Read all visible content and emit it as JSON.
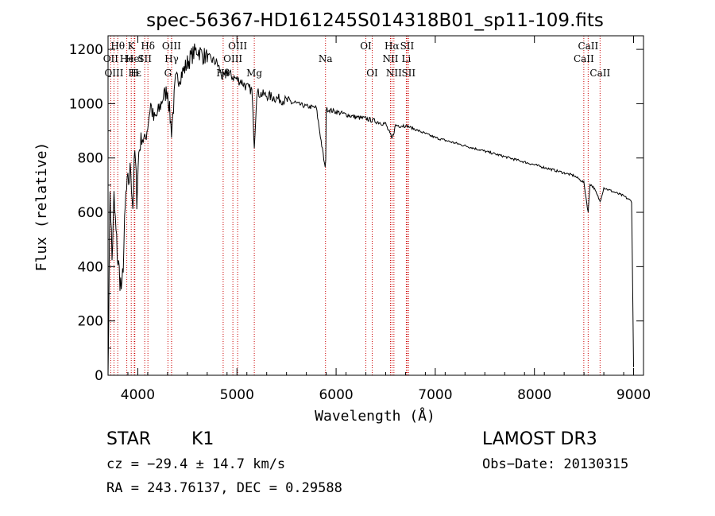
{
  "chart_data": {
    "type": "line",
    "title": "spec-56367-HD161245S014318B01_sp11-109.fits",
    "xlabel": "Wavelength (Å)",
    "ylabel": "Flux (relative)",
    "xlim": [
      3700,
      9100
    ],
    "ylim": [
      0,
      1250
    ],
    "x_ticks": [
      4000,
      5000,
      6000,
      7000,
      8000,
      9000
    ],
    "y_ticks": [
      0,
      200,
      400,
      600,
      800,
      1000,
      1200
    ],
    "grid": false,
    "series": [
      {
        "name": "spectrum",
        "x": [
          3700,
          3720,
          3740,
          3760,
          3780,
          3800,
          3820,
          3840,
          3860,
          3880,
          3900,
          3930,
          3950,
          3970,
          3990,
          4010,
          4040,
          4070,
          4100,
          4130,
          4160,
          4200,
          4250,
          4300,
          4340,
          4380,
          4420,
          4460,
          4500,
          4550,
          4600,
          4650,
          4700,
          4750,
          4800,
          4860,
          4900,
          4950,
          5000,
          5050,
          5100,
          5150,
          5175,
          5200,
          5300,
          5400,
          5500,
          5600,
          5700,
          5800,
          5890,
          5895,
          5900,
          5950,
          6000,
          6100,
          6200,
          6300,
          6400,
          6500,
          6563,
          6600,
          6700,
          6800,
          6900,
          7000,
          7100,
          7200,
          7300,
          7400,
          7500,
          7600,
          7700,
          7800,
          7900,
          8000,
          8100,
          8200,
          8300,
          8400,
          8498,
          8542,
          8560,
          8600,
          8662,
          8700,
          8800,
          8900,
          8980,
          9000
        ],
        "y": [
          0,
          700,
          420,
          650,
          520,
          420,
          360,
          300,
          480,
          660,
          700,
          760,
          620,
          820,
          660,
          820,
          880,
          860,
          920,
          1000,
          940,
          960,
          1020,
          1050,
          900,
          1080,
          1100,
          1120,
          1150,
          1180,
          1200,
          1180,
          1170,
          1160,
          1150,
          1090,
          1120,
          1100,
          1090,
          1080,
          1060,
          1050,
          850,
          1040,
          1030,
          1020,
          1010,
          1000,
          990,
          985,
          760,
          800,
          980,
          975,
          970,
          960,
          950,
          945,
          935,
          925,
          870,
          920,
          920,
          905,
          890,
          875,
          865,
          855,
          845,
          835,
          825,
          815,
          805,
          795,
          785,
          775,
          765,
          755,
          745,
          735,
          710,
          600,
          705,
          690,
          640,
          690,
          675,
          660,
          640,
          30
        ]
      }
    ],
    "line_markers": [
      {
        "label": "Hθ",
        "x": 3798,
        "row": 1
      },
      {
        "label": "OII",
        "x": 3727,
        "row": 2
      },
      {
        "label": "OIII",
        "x": 3760,
        "row": 3
      },
      {
        "label": "He",
        "x": 3889,
        "row": 2
      },
      {
        "label": "K",
        "x": 3934,
        "row": 1
      },
      {
        "label": "Hε",
        "x": 3970,
        "row": 3
      },
      {
        "label": "HeI",
        "x": 3965,
        "row": 2
      },
      {
        "label": "SII",
        "x": 4070,
        "row": 2
      },
      {
        "label": "H",
        "x": 3968,
        "row": 3
      },
      {
        "label": "Hδ",
        "x": 4102,
        "row": 1
      },
      {
        "label": "OIII",
        "x": 4340,
        "row": 1
      },
      {
        "label": "Hγ",
        "x": 4341,
        "row": 2
      },
      {
        "label": "G",
        "x": 4304,
        "row": 3
      },
      {
        "label": "OIII",
        "x": 5007,
        "row": 1
      },
      {
        "label": "OIII",
        "x": 4959,
        "row": 2
      },
      {
        "label": "Hβ",
        "x": 4861,
        "row": 3
      },
      {
        "label": "Mg",
        "x": 5175,
        "row": 3
      },
      {
        "label": "Na",
        "x": 5893,
        "row": 2
      },
      {
        "label": "OI",
        "x": 6300,
        "row": 1
      },
      {
        "label": "OI",
        "x": 6364,
        "row": 3
      },
      {
        "label": "Hα",
        "x": 6563,
        "row": 1
      },
      {
        "label": "NII",
        "x": 6548,
        "row": 2
      },
      {
        "label": "NII",
        "x": 6583,
        "row": 3
      },
      {
        "label": "SII",
        "x": 6716,
        "row": 1
      },
      {
        "label": "Li",
        "x": 6708,
        "row": 2
      },
      {
        "label": "SII",
        "x": 6731,
        "row": 3
      },
      {
        "label": "CaII",
        "x": 8542,
        "row": 1
      },
      {
        "label": "CaII",
        "x": 8498,
        "row": 2
      },
      {
        "label": "CaII",
        "x": 8662,
        "row": 3
      }
    ]
  },
  "info": {
    "object_class": "STAR",
    "subclass": "K1",
    "survey": "LAMOST DR3",
    "cz": "cz = −29.4 ± 14.7 km/s",
    "obs_date": "Obs−Date: 20130315",
    "coords": "RA = 243.76137, DEC =    0.29588"
  },
  "colors": {
    "line": "#000000",
    "marker": "#cc0000",
    "background": "#ffffff"
  }
}
